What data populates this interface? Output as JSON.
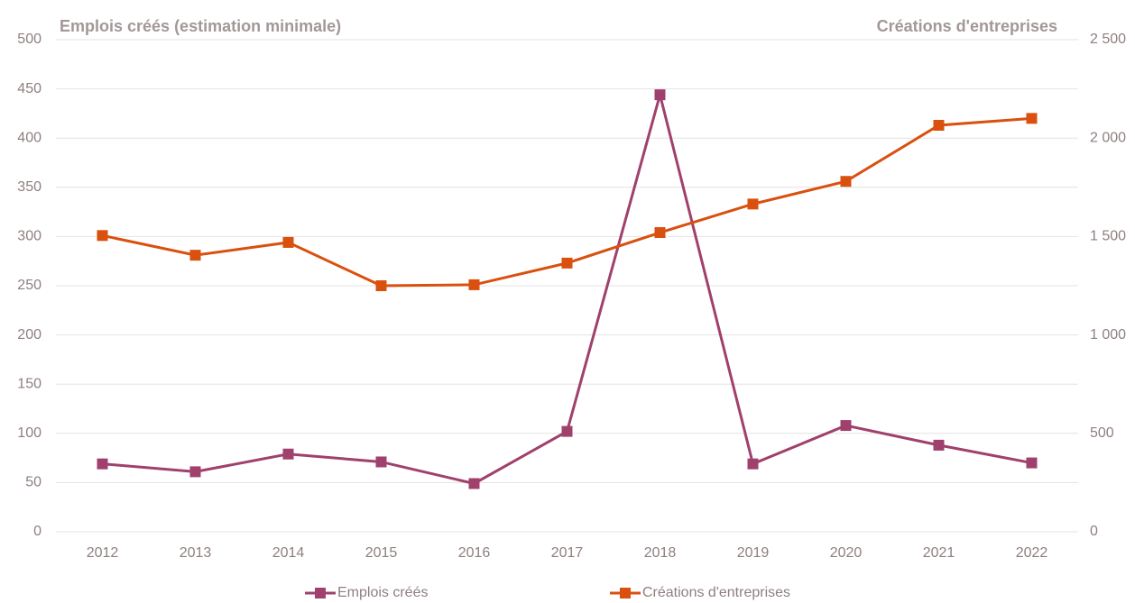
{
  "chart_data": {
    "type": "line",
    "y_title": "Emplois créés (estimation minimale)",
    "y2_title": "Créations d'entreprises",
    "categories": [
      "2012",
      "2013",
      "2014",
      "2015",
      "2016",
      "2017",
      "2018",
      "2019",
      "2020",
      "2021",
      "2022"
    ],
    "series": [
      {
        "name": "Emplois créés",
        "color": "#a0406c",
        "values": [
          69,
          61,
          79,
          71,
          49,
          102,
          444,
          69,
          108,
          88,
          70
        ]
      },
      {
        "name": "Créations d'entreprises",
        "color": "#d9500f",
        "axis": "y2",
        "values": [
          1505,
          1405,
          1470,
          1250,
          1255,
          1365,
          1520,
          1665,
          1780,
          2065,
          2100
        ]
      }
    ],
    "ylim": [
      0,
      500
    ],
    "yticks": [
      0,
      50,
      100,
      150,
      200,
      250,
      300,
      350,
      400,
      450,
      500
    ],
    "y2lim": [
      0,
      2500
    ],
    "y2ticks": [
      0,
      500,
      {
        "value": 1000,
        "label": "1 000"
      },
      {
        "value": 1500,
        "label": "1 500"
      },
      {
        "value": 2000,
        "label": "2 000"
      },
      {
        "value": 2500,
        "label": "2 500"
      }
    ],
    "grid": true,
    "legend": "bottom"
  }
}
